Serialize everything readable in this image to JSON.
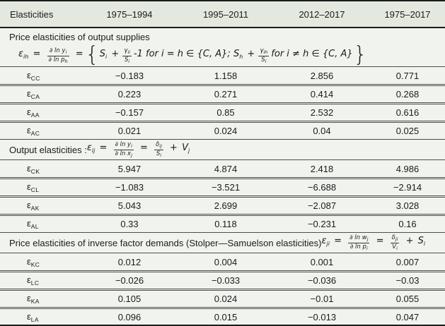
{
  "header": {
    "columns": [
      "Elasticities",
      "1975–1994",
      "1995–2011",
      "2012–2017",
      "1975–2017"
    ]
  },
  "sections": [
    {
      "title": "Price elasticities of output supplies",
      "formula": {
        "eps": "ε",
        "eps_sub": "ih",
        "eq1": "=",
        "f1_num": "∂ ln y",
        "f1_num_sub": "i",
        "f1_den": "∂ ln p",
        "f1_den_sub": "h",
        "eq2": "=",
        "brace_left": "{",
        "S1": "S",
        "S1_sub": "i",
        "plus1": "+",
        "g1_num": "γ",
        "g1_num_sub": "ii",
        "g1_den": "S",
        "g1_den_sub": "i",
        "mid1": "-1 for i = h ∈ {C, A};",
        "S2": "S",
        "S2_sub": "h",
        "plus2": "+",
        "g2_num": "γ",
        "g2_num_sub": "ih",
        "g2_den": "S",
        "g2_den_sub": "i",
        "mid2": "for i ≠ h ∈ {C, A}",
        "brace_right": "}"
      },
      "rows": [
        {
          "symbol": "ε",
          "sub": "CC",
          "values": [
            "−0.183",
            "1.158",
            "2.856",
            "0.771"
          ]
        },
        {
          "symbol": "ε",
          "sub": "CA",
          "values": [
            "0.223",
            "0.271",
            "0.414",
            "0.268"
          ]
        },
        {
          "symbol": "ε",
          "sub": "AA",
          "values": [
            "−0.157",
            "0.85",
            "2.532",
            "0.616"
          ]
        },
        {
          "symbol": "ε",
          "sub": "AC",
          "values": [
            "0.021",
            "0.024",
            "0.04",
            "0.025"
          ]
        }
      ]
    },
    {
      "title": "Output elasticities : ",
      "formula": {
        "eps": "ε",
        "eps_sub": "ij",
        "eq1": "=",
        "f1_num": "∂ ln y",
        "f1_num_sub": "i",
        "f1_den": "∂ ln x",
        "f1_den_sub": "j",
        "eq2": "=",
        "g1_num": "δ",
        "g1_num_sub": "ij",
        "g1_den": "S",
        "g1_den_sub": "i",
        "plus": "+",
        "tail": "V",
        "tail_sub": "j"
      },
      "rows": [
        {
          "symbol": "ε",
          "sub": "CK",
          "values": [
            "5.947",
            "4.874",
            "2.418",
            "4.986"
          ]
        },
        {
          "symbol": "ε",
          "sub": "CL",
          "values": [
            "−1.083",
            "−3.521",
            "−6.688",
            "−2.914"
          ]
        },
        {
          "symbol": "ε",
          "sub": "AK",
          "values": [
            "5.043",
            "2.699",
            "−2.087",
            "3.028"
          ]
        },
        {
          "symbol": "ε",
          "sub": "AL",
          "values": [
            "0.33",
            "0.118",
            "−0.231",
            "0.16"
          ]
        }
      ]
    },
    {
      "title": "Price elasticities of inverse factor demands (Stolper—Samuelson elasticities) ",
      "formula": {
        "eps": "ε",
        "eps_sub": "ji",
        "eq1": "=",
        "f1_num": "∂ ln w",
        "f1_num_sub": "j",
        "f1_den": "∂ ln p",
        "f1_den_sub": "i",
        "eq2": "=",
        "g1_num": "δ",
        "g1_num_sub": "ji",
        "g1_den": "V",
        "g1_den_sub": "i",
        "plus": "+",
        "tail": "S",
        "tail_sub": "i"
      },
      "rows": [
        {
          "symbol": "ε",
          "sub": "KC",
          "values": [
            "0.012",
            "0.004",
            "0.001",
            "0.007"
          ]
        },
        {
          "symbol": "ε",
          "sub": "LC",
          "values": [
            "−0.026",
            "−0.033",
            "−0.036",
            "−0.03"
          ]
        },
        {
          "symbol": "ε",
          "sub": "KA",
          "values": [
            "0.105",
            "0.024",
            "−0.01",
            "0.055"
          ]
        },
        {
          "symbol": "ε",
          "sub": "LA",
          "values": [
            "0.096",
            "0.015",
            "−0.013",
            "0.047"
          ]
        }
      ]
    }
  ]
}
